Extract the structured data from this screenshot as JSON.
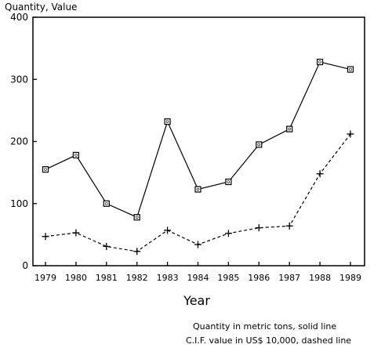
{
  "chart_data": {
    "type": "line",
    "ylabel": "Quantity, Value",
    "xlabel": "Year",
    "x": [
      1979,
      1980,
      1981,
      1982,
      1983,
      1984,
      1985,
      1986,
      1987,
      1988,
      1989
    ],
    "ylim": [
      0,
      400
    ],
    "yticks": [
      0,
      100,
      200,
      300,
      400
    ],
    "grid": false,
    "series": [
      {
        "name": "Quantity in metric tons, solid line",
        "values": [
          155,
          178,
          100,
          78,
          232,
          123,
          135,
          195,
          220,
          328,
          316
        ],
        "line_style": "solid",
        "marker": "square"
      },
      {
        "name": "C.I.F. value in US$ 10,000, dashed line",
        "values": [
          47,
          53,
          31,
          23,
          57,
          34,
          52,
          61,
          64,
          148,
          212
        ],
        "line_style": "dashed",
        "marker": "plus"
      }
    ],
    "notes": [
      "Quantity in metric tons, solid line",
      "C.I.F. value in US$ 10,000, dashed line"
    ]
  }
}
